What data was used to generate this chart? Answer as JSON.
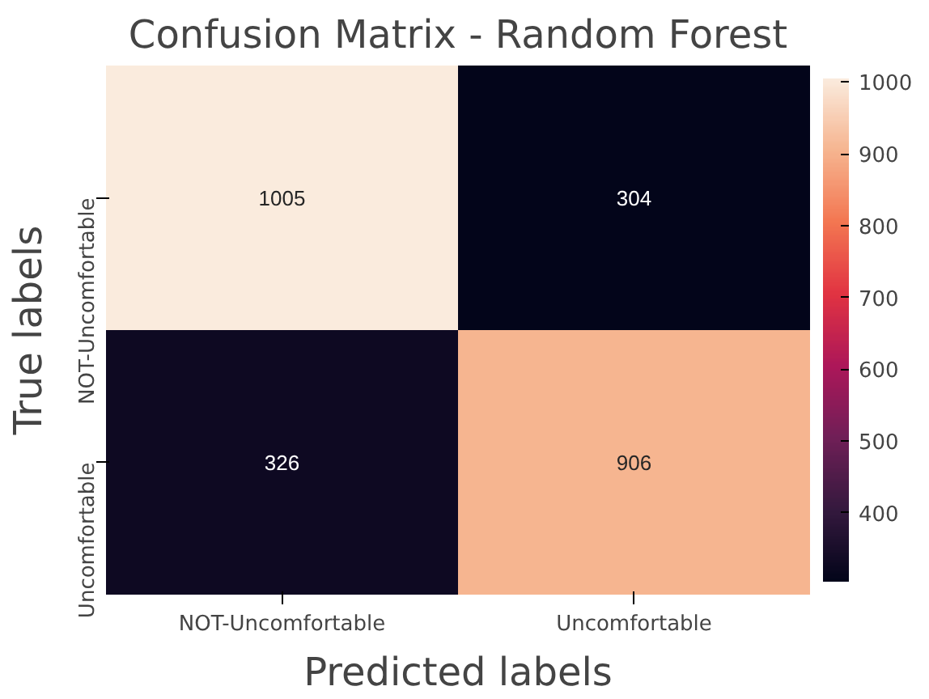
{
  "chart_data": {
    "type": "heatmap",
    "title": "Confusion Matrix - Random Forest",
    "xlabel": "Predicted labels",
    "ylabel": "True labels",
    "categories": [
      "NOT-Uncomfortable",
      "Uncomfortable"
    ],
    "y_categories": [
      "NOT-Uncomfortable",
      "Uncomfortable"
    ],
    "cells": [
      [
        1005,
        304
      ],
      [
        326,
        906
      ]
    ],
    "data_labels": true,
    "clim": [
      304,
      1005
    ],
    "cticks": [
      400,
      500,
      600,
      700,
      800,
      900,
      1000
    ]
  }
}
